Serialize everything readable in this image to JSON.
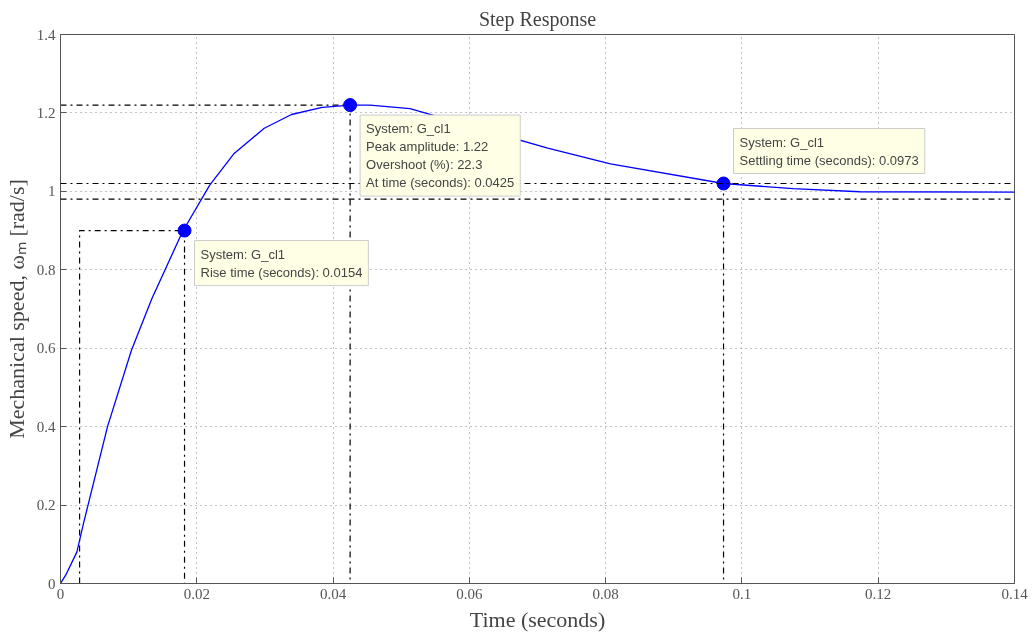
{
  "chart_data": {
    "type": "line",
    "title": "Step Response",
    "xlabel": "Time (seconds)",
    "ylabel": "Mechanical speed, ωₘ [rad/s]",
    "xlim": [
      0,
      0.14
    ],
    "ylim": [
      0,
      1.4
    ],
    "xticks": [
      0,
      0.02,
      0.04,
      0.06,
      0.08,
      0.1,
      0.12,
      0.14
    ],
    "yticks": [
      0,
      0.2,
      0.4,
      0.6,
      0.8,
      1,
      1.2,
      1.4
    ],
    "grid": true,
    "series": [
      {
        "color": "#0000ff",
        "line_style": "solid",
        "x": [
          0,
          0.00085,
          0.0024,
          0.0034,
          0.0069,
          0.0104,
          0.0134,
          0.0179,
          0.0219,
          0.0254,
          0.0299,
          0.0339,
          0.0384,
          0.0425,
          0.0454,
          0.0513,
          0.0715,
          0.0807,
          0.0973,
          0.1075,
          0.1173,
          0.14
        ],
        "values": [
          0,
          0.024,
          0.08,
          0.155,
          0.4,
          0.594,
          0.726,
          0.897,
          1.016,
          1.095,
          1.161,
          1.196,
          1.214,
          1.22,
          1.22,
          1.211,
          1.11,
          1.07,
          1.02,
          1.007,
          0.999,
          0.998
        ]
      },
      {
        "type": "scatter",
        "color": "#0000ff",
        "marker": "circle",
        "x": [
          0.0182,
          0.0425,
          0.0973
        ],
        "values": [
          0.9,
          1.22,
          1.02
        ]
      },
      {
        "type": "line",
        "color": "#000000",
        "line_style": "dashed",
        "x": [
          0.0028,
          0.0028,
          0.0182,
          0.0182,
          0.0182
        ],
        "values": [
          0,
          0.9,
          0.9,
          0.9,
          0
        ]
      },
      {
        "type": "line",
        "color": "#000000",
        "line_style": "dashed",
        "x": [
          0,
          0.0425,
          0.0425
        ],
        "values": [
          1.22,
          1.22,
          0
        ]
      },
      {
        "type": "line",
        "color": "#000000",
        "line_style": "dashed",
        "x": [
          0.0973,
          0.0973
        ],
        "values": [
          1.02,
          0
        ]
      }
    ],
    "ref_lines": [
      {
        "axis": "y",
        "value": 1.02,
        "color": "#000000",
        "line_style": "dashed"
      },
      {
        "axis": "y",
        "value": 0.98,
        "color": "#000000",
        "line_style": "dashed"
      }
    ],
    "annotations": [
      {
        "text": "System: G_cl1\nRise time (seconds): 0.0154",
        "x": 0.0182,
        "y": 0.9
      },
      {
        "text": "System: G_cl1\nPeak amplitude: 1.22\nOvershoot (%): 22.3\nAt time (seconds): 0.0425",
        "x": 0.0425,
        "y": 1.22
      },
      {
        "text": "System: G_cl1\nSettling time (seconds): 0.0973",
        "x": 0.0973,
        "y": 1.02
      }
    ]
  }
}
